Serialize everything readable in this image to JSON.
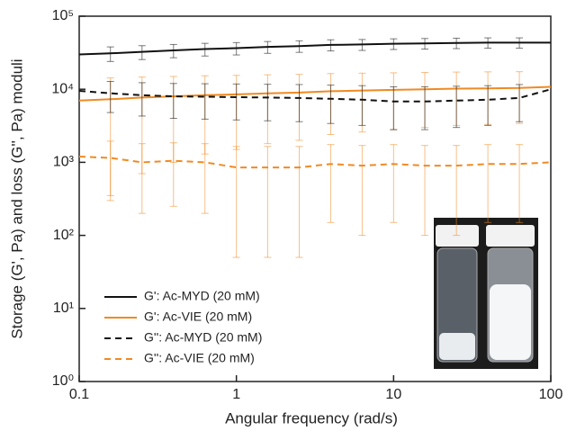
{
  "chart_data": {
    "type": "line",
    "x_label": "Angular frequency (rad/s)",
    "y_label": "Storage (G', Pa) and loss (G'', Pa) moduli",
    "log_x": true,
    "log_y": true,
    "xlim": [
      0.1,
      100
    ],
    "ylim": [
      1,
      100000
    ],
    "xticks": [
      0.1,
      1,
      10,
      100
    ],
    "yticks": [
      {
        "value": 1,
        "label": "10⁰"
      },
      {
        "value": 10,
        "label": "10¹"
      },
      {
        "value": 100,
        "label": "10²"
      },
      {
        "value": 1000,
        "label": "10³"
      },
      {
        "value": 10000,
        "label": "10⁴"
      },
      {
        "value": 100000,
        "label": "10⁵"
      }
    ],
    "x": [
      0.1,
      0.158,
      0.251,
      0.398,
      0.631,
      1,
      1.58,
      2.51,
      3.98,
      6.31,
      10,
      15.8,
      25.1,
      39.8,
      63.1,
      100
    ],
    "legend": "lower left",
    "series": [
      {
        "name": "G': Ac-MYD (20 mM)",
        "color": "#111111",
        "line_style": "solid",
        "values": [
          30000,
          31000,
          32500,
          34000,
          35500,
          36500,
          38000,
          39000,
          40500,
          41000,
          42000,
          42500,
          43000,
          43500,
          43500,
          43500
        ],
        "errors": [
          null,
          7000,
          7000,
          7000,
          7000,
          7000,
          7000,
          7000,
          7000,
          7000,
          7000,
          7000,
          7000,
          7000,
          7000,
          null
        ]
      },
      {
        "name": "G': Ac-VIE (20 mM)",
        "color": "#f08a24",
        "line_style": "solid",
        "values": [
          7000,
          7300,
          7700,
          8000,
          8300,
          8500,
          8800,
          9000,
          9400,
          9600,
          9800,
          10000,
          10200,
          10300,
          10400,
          10800
        ],
        "errors": [
          null,
          7000,
          7000,
          7000,
          7000,
          7000,
          7000,
          7000,
          7000,
          7000,
          7000,
          7000,
          7000,
          7000,
          7000,
          null
        ]
      },
      {
        "name": "G'': Ac-MYD (20 mM)",
        "color": "#111111",
        "line_style": "dashed",
        "values": [
          9500,
          8800,
          8300,
          8000,
          7900,
          7800,
          7700,
          7600,
          7400,
          7200,
          6800,
          6800,
          7000,
          7200,
          7600,
          10000
        ],
        "errors": [
          null,
          4000,
          4000,
          4000,
          4000,
          4000,
          4000,
          4000,
          4000,
          4000,
          4000,
          4000,
          4000,
          4000,
          4000,
          null
        ]
      },
      {
        "name": "G'': Ac-VIE (20 mM)",
        "color": "#f08a24",
        "line_style": "dashed",
        "values": [
          1200,
          1150,
          1000,
          1050,
          1000,
          850,
          850,
          850,
          950,
          900,
          950,
          900,
          900,
          950,
          950,
          1000
        ],
        "errors": [
          null,
          800,
          800,
          800,
          800,
          800,
          800,
          800,
          800,
          800,
          800,
          800,
          800,
          800,
          800,
          null
        ]
      }
    ]
  }
}
